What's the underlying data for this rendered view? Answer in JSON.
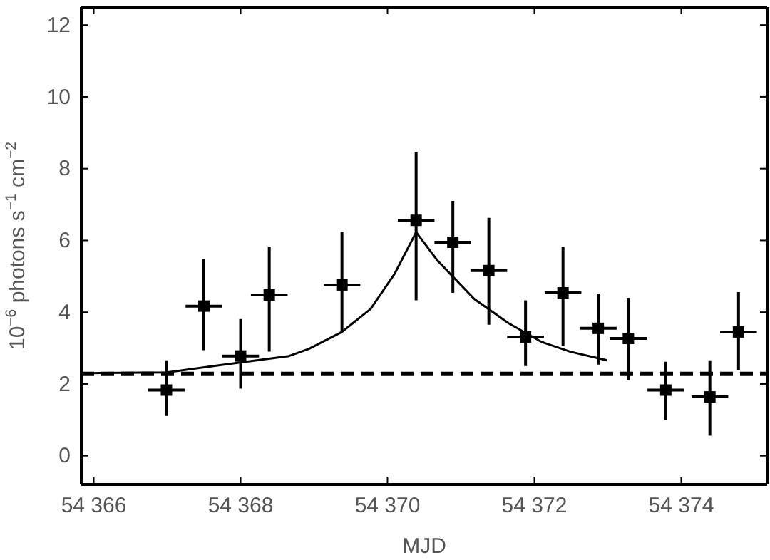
{
  "chart_data": {
    "type": "scatter",
    "xlabel": "MJD",
    "ylabel": "10$^{−6}$ photons s$^{−1}$ cm$^{−2}$",
    "xlim": [
      54365.83,
      54375.17
    ],
    "ylim": [
      -0.8,
      12.5
    ],
    "xticks": [
      {
        "value": 54366,
        "label": "54 366"
      },
      {
        "value": 54368,
        "label": "54 368"
      },
      {
        "value": 54370,
        "label": "54 370"
      },
      {
        "value": 54372,
        "label": "54 372"
      },
      {
        "value": 54374,
        "label": "54 374"
      }
    ],
    "yticks": [
      0,
      2,
      4,
      6,
      8,
      10,
      12
    ],
    "grid": false,
    "series": [
      {
        "color": "#000000",
        "marker": "square",
        "x": [
          54366.99,
          54367.5,
          54368.0,
          54368.39,
          54369.38,
          54370.39,
          54370.89,
          54371.38,
          54371.88,
          54372.39,
          54372.87,
          54373.28,
          54373.79,
          54374.39,
          54374.78
        ],
        "values": [
          1.83,
          4.17,
          2.78,
          4.48,
          4.76,
          6.56,
          5.95,
          5.16,
          3.31,
          4.54,
          3.55,
          3.27,
          1.83,
          1.64,
          3.45
        ],
        "errors": [
          [
            1.11,
            2.66
          ],
          [
            2.94,
            5.48
          ],
          [
            1.87,
            3.81
          ],
          [
            2.9,
            5.83
          ],
          [
            3.45,
            6.23
          ],
          [
            4.33,
            8.45
          ],
          [
            4.54,
            7.1
          ],
          [
            3.65,
            6.63
          ],
          [
            2.5,
            4.33
          ],
          [
            3.06,
            5.83
          ],
          [
            2.54,
            4.52
          ],
          [
            2.1,
            4.4
          ],
          [
            1.0,
            2.62
          ],
          [
            0.56,
            2.66
          ],
          [
            2.38,
            4.56
          ]
        ],
        "xerrors": [
          0.25,
          0.25,
          0.25,
          0.25,
          0.25,
          0.25,
          0.25,
          0.25,
          0.25,
          0.25,
          0.25,
          0.25,
          0.25,
          0.25,
          0.25
        ]
      },
      {
        "type": "line",
        "color": "#000000",
        "line_style": "solid",
        "marker": "none",
        "x": [
          54365.83,
          54366.99,
          54367.63,
          54368.66,
          54368.93,
          54369.38,
          54369.77,
          54370.1,
          54370.39,
          54370.68,
          54371.18,
          54371.65,
          54372.1,
          54372.49,
          54372.99
        ],
        "values": [
          2.3,
          2.32,
          2.5,
          2.78,
          2.98,
          3.45,
          4.09,
          5.08,
          6.23,
          5.44,
          4.37,
          3.69,
          3.17,
          2.9,
          2.66
        ]
      }
    ],
    "ref_lines": [
      {
        "axis": "y",
        "value": 2.28,
        "color": "#000000",
        "line_style": "dashed"
      }
    ]
  }
}
